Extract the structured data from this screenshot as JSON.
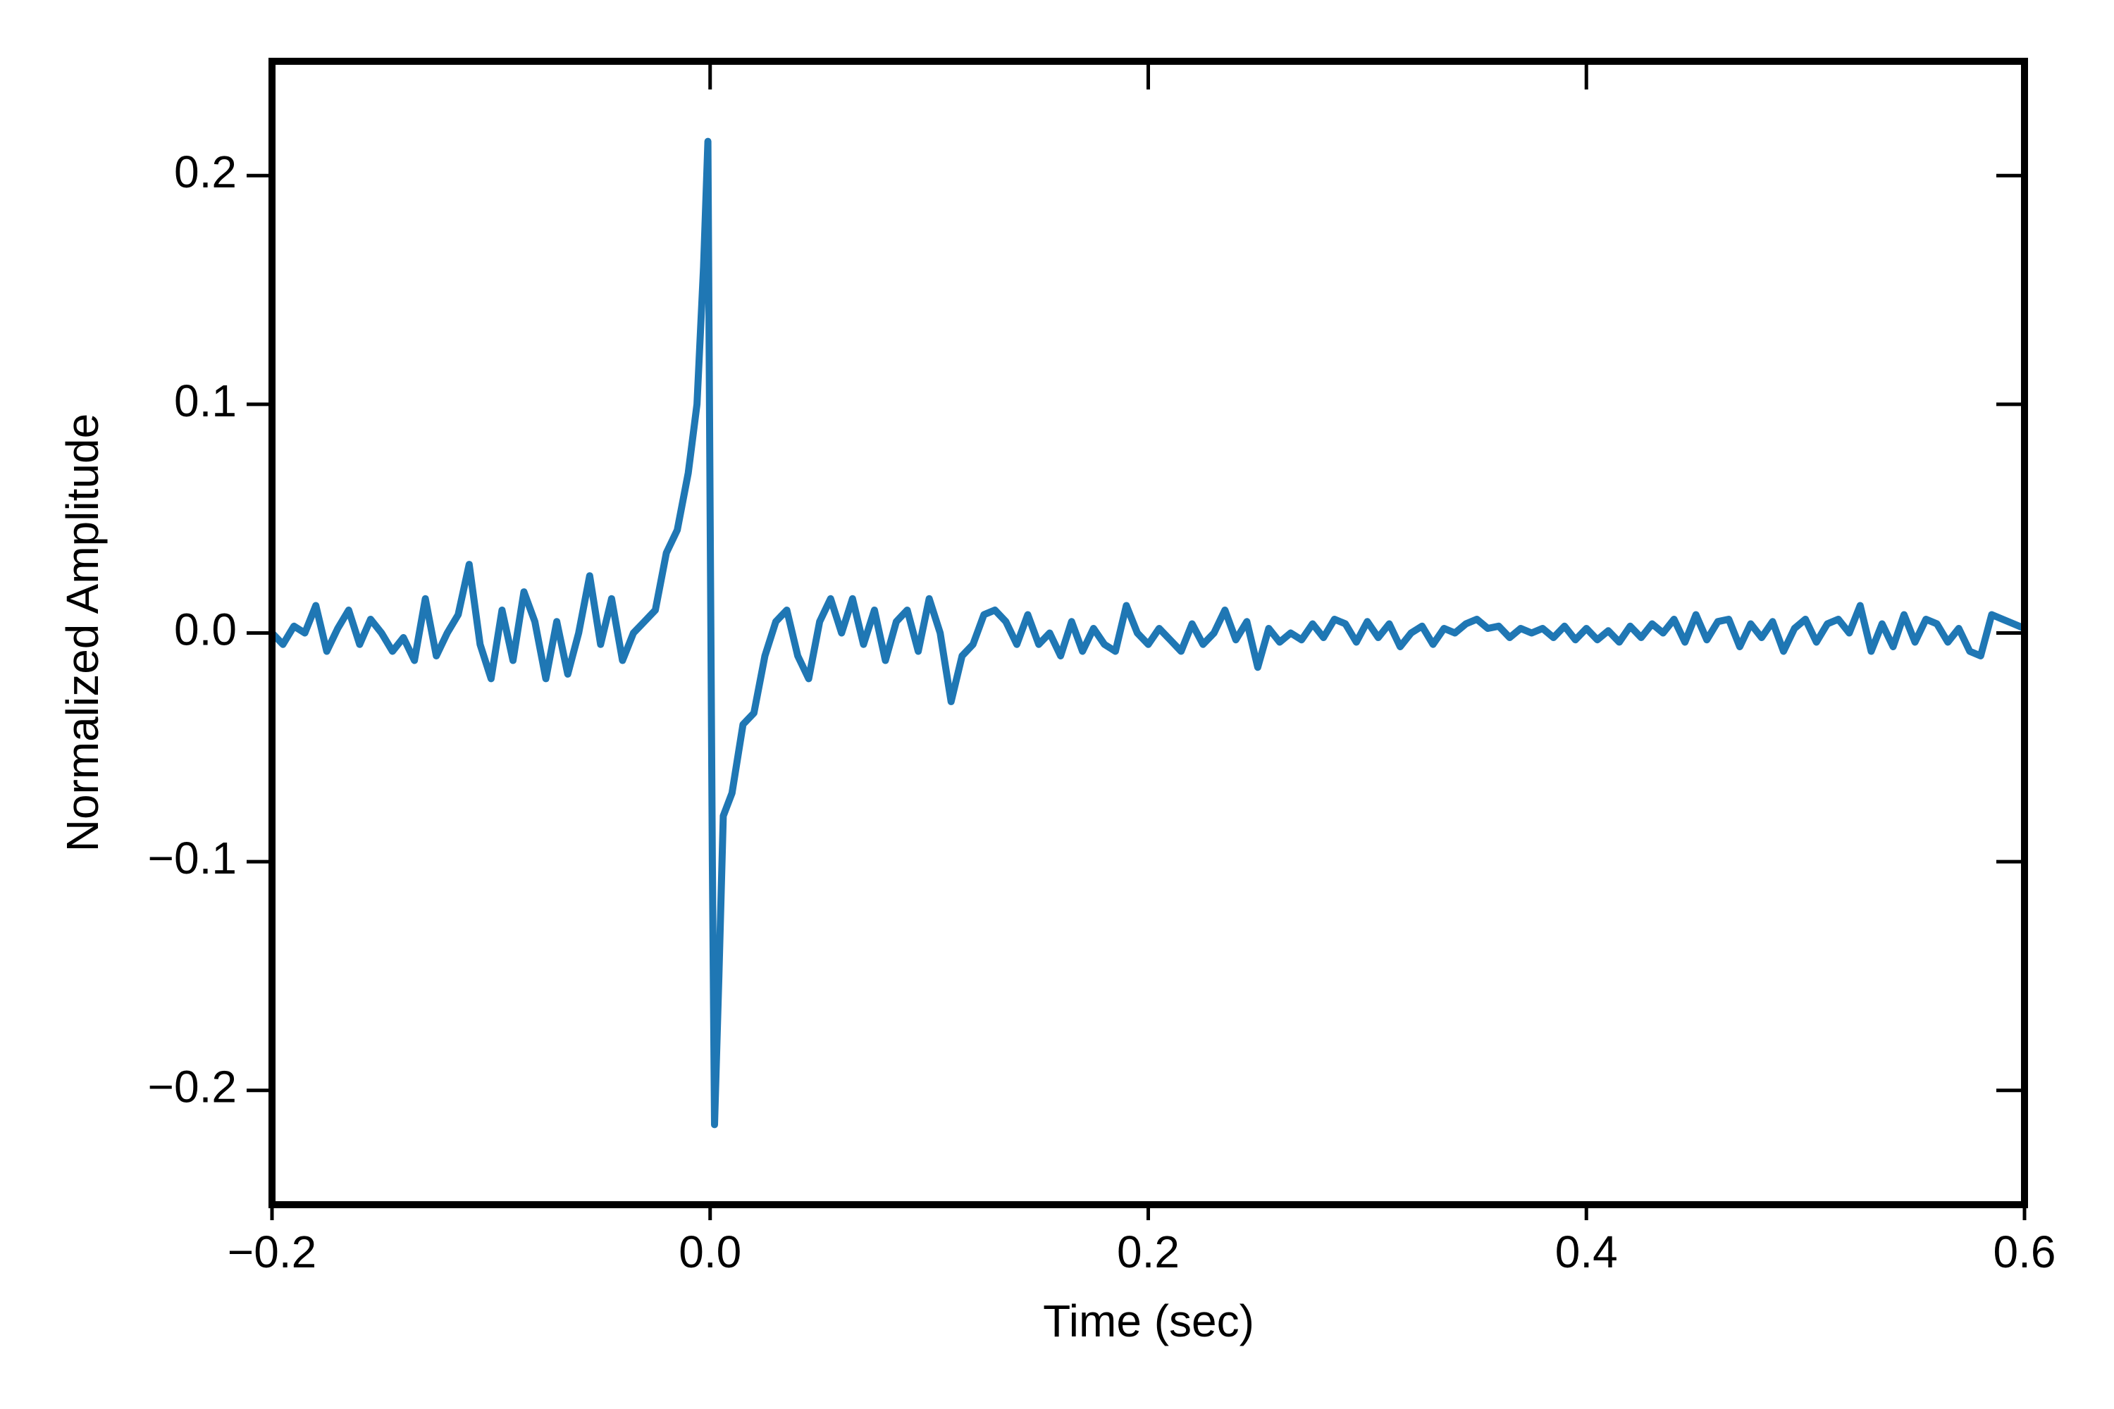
{
  "chart_data": {
    "type": "line",
    "xlabel": "Time (sec)",
    "ylabel": "Normalized Amplitude",
    "xlim": [
      -0.2,
      0.6
    ],
    "xticks": [
      {
        "value": -0.2,
        "label": "−0.2"
      },
      {
        "value": 0.0,
        "label": "0.0"
      },
      0.2,
      0.4,
      0.6
    ],
    "ylim": [
      -0.25,
      0.25
    ],
    "yticks": [
      {
        "value": -0.2,
        "label": "−0.2"
      },
      {
        "value": -0.1,
        "label": "−0.1"
      },
      {
        "value": 0.0,
        "label": "0.0"
      },
      0.1,
      0.2
    ],
    "grid": false,
    "x": [
      -0.2,
      -0.195,
      -0.19,
      -0.185,
      -0.18,
      -0.175,
      -0.17,
      -0.165,
      -0.16,
      -0.155,
      -0.15,
      -0.145,
      -0.14,
      -0.135,
      -0.13,
      -0.125,
      -0.12,
      -0.115,
      -0.11,
      -0.105,
      -0.1,
      -0.095,
      -0.09,
      -0.085,
      -0.08,
      -0.075,
      -0.07,
      -0.065,
      -0.06,
      -0.055,
      -0.05,
      -0.045,
      -0.04,
      -0.035,
      -0.03,
      -0.025,
      -0.02,
      -0.015,
      -0.01,
      -0.006,
      -0.003,
      -0.001,
      0.0,
      0.001,
      0.002,
      0.004,
      0.006,
      0.01,
      0.015,
      0.02,
      0.025,
      0.03,
      0.035,
      0.04,
      0.045,
      0.05,
      0.055,
      0.06,
      0.065,
      0.07,
      0.075,
      0.08,
      0.085,
      0.09,
      0.095,
      0.1,
      0.105,
      0.11,
      0.115,
      0.12,
      0.125,
      0.13,
      0.135,
      0.14,
      0.145,
      0.15,
      0.155,
      0.16,
      0.165,
      0.17,
      0.175,
      0.18,
      0.185,
      0.19,
      0.195,
      0.2,
      0.205,
      0.21,
      0.215,
      0.22,
      0.225,
      0.23,
      0.235,
      0.24,
      0.245,
      0.25,
      0.255,
      0.26,
      0.265,
      0.27,
      0.275,
      0.28,
      0.285,
      0.29,
      0.295,
      0.3,
      0.305,
      0.31,
      0.315,
      0.32,
      0.325,
      0.33,
      0.335,
      0.34,
      0.345,
      0.35,
      0.355,
      0.36,
      0.365,
      0.37,
      0.375,
      0.38,
      0.385,
      0.39,
      0.395,
      0.4,
      0.405,
      0.41,
      0.415,
      0.42,
      0.425,
      0.43,
      0.435,
      0.44,
      0.445,
      0.45,
      0.455,
      0.46,
      0.465,
      0.47,
      0.475,
      0.48,
      0.485,
      0.49,
      0.495,
      0.5,
      0.505,
      0.51,
      0.515,
      0.52,
      0.525,
      0.53,
      0.535,
      0.54,
      0.545,
      0.55,
      0.555,
      0.56,
      0.565,
      0.57,
      0.575,
      0.58,
      0.585,
      0.59,
      0.595,
      0.6
    ],
    "series": [
      {
        "color": "#1f77b4",
        "values": [
          0.0,
          -0.005,
          0.003,
          0.0,
          0.012,
          -0.008,
          0.002,
          0.01,
          -0.005,
          0.006,
          0.0,
          -0.008,
          -0.002,
          -0.012,
          0.015,
          -0.01,
          0.0,
          0.008,
          0.03,
          -0.005,
          -0.02,
          0.01,
          -0.012,
          0.018,
          0.005,
          -0.02,
          0.005,
          -0.018,
          0.0,
          0.025,
          -0.005,
          0.015,
          -0.012,
          0.0,
          0.005,
          0.01,
          0.035,
          0.045,
          0.07,
          0.1,
          0.16,
          0.215,
          0.05,
          -0.1,
          -0.215,
          -0.15,
          -0.08,
          -0.07,
          -0.04,
          -0.035,
          -0.01,
          0.005,
          0.01,
          -0.01,
          -0.02,
          0.005,
          0.015,
          0.0,
          0.015,
          -0.005,
          0.01,
          -0.012,
          0.005,
          0.01,
          -0.008,
          0.015,
          0.0,
          -0.03,
          -0.01,
          -0.005,
          0.008,
          0.01,
          0.005,
          -0.005,
          0.008,
          -0.005,
          0.0,
          -0.01,
          0.005,
          -0.008,
          0.002,
          -0.005,
          -0.008,
          0.012,
          0.0,
          -0.005,
          0.002,
          -0.003,
          -0.008,
          0.004,
          -0.005,
          0.0,
          0.01,
          -0.003,
          0.005,
          -0.015,
          0.002,
          -0.004,
          0.0,
          -0.003,
          0.004,
          -0.002,
          0.006,
          0.004,
          -0.004,
          0.005,
          -0.002,
          0.004,
          -0.006,
          0.0,
          0.003,
          -0.005,
          0.002,
          0.0,
          0.004,
          0.006,
          0.002,
          0.003,
          -0.002,
          0.002,
          0.0,
          0.002,
          -0.002,
          0.003,
          -0.003,
          0.002,
          -0.003,
          0.001,
          -0.004,
          0.003,
          -0.002,
          0.004,
          0.0,
          0.006,
          -0.004,
          0.008,
          -0.003,
          0.005,
          0.006,
          -0.006,
          0.004,
          -0.002,
          0.005,
          -0.008,
          0.002,
          0.006,
          -0.004,
          0.004,
          0.006,
          0.0,
          0.012,
          -0.008,
          0.004,
          -0.006,
          0.008,
          -0.004,
          0.006,
          0.004,
          -0.004,
          0.002,
          -0.008,
          -0.01,
          0.008,
          0.006,
          0.004,
          0.002
        ]
      }
    ]
  }
}
